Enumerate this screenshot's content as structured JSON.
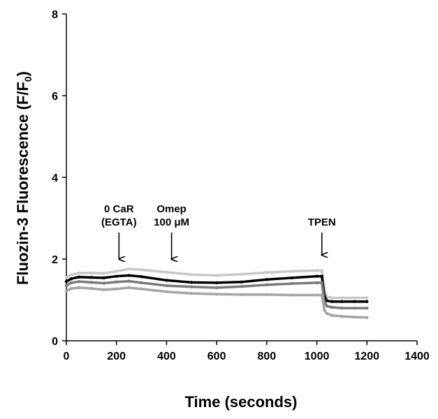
{
  "chart_data": {
    "type": "line",
    "title": "",
    "xlabel": "Time (seconds)",
    "ylabel": "Fluozin-3 Fluorescence (F/F",
    "ylabel_sub": "0",
    "ylabel_end": ")",
    "xlim": [
      0,
      1400
    ],
    "ylim": [
      0,
      8
    ],
    "xticks": [
      0,
      200,
      400,
      600,
      800,
      1000,
      1200,
      1400
    ],
    "yticks": [
      0,
      2,
      4,
      6,
      8
    ],
    "grid": false,
    "legend": "none",
    "series": [
      {
        "color": "#c8c8c8",
        "x": [
          0,
          20,
          50,
          100,
          150,
          200,
          250,
          300,
          400,
          500,
          600,
          700,
          800,
          900,
          1000,
          1020,
          1030,
          1040,
          1060,
          1100,
          1150,
          1200
        ],
        "y": [
          1.55,
          1.62,
          1.66,
          1.66,
          1.65,
          1.7,
          1.76,
          1.74,
          1.68,
          1.62,
          1.6,
          1.63,
          1.67,
          1.7,
          1.72,
          1.72,
          1.25,
          1.08,
          1.05,
          1.05,
          1.05,
          1.05
        ]
      },
      {
        "color": "#000000",
        "x": [
          0,
          20,
          50,
          100,
          150,
          200,
          250,
          300,
          400,
          500,
          600,
          700,
          800,
          900,
          1000,
          1020,
          1030,
          1040,
          1060,
          1100,
          1150,
          1200
        ],
        "y": [
          1.45,
          1.52,
          1.56,
          1.55,
          1.54,
          1.58,
          1.6,
          1.57,
          1.48,
          1.43,
          1.42,
          1.44,
          1.5,
          1.54,
          1.58,
          1.58,
          1.1,
          0.98,
          0.96,
          0.96,
          0.96,
          0.96
        ]
      },
      {
        "color": "#7a7a7a",
        "x": [
          0,
          20,
          50,
          100,
          150,
          200,
          250,
          300,
          400,
          500,
          600,
          700,
          800,
          900,
          1000,
          1020,
          1030,
          1040,
          1060,
          1100,
          1150,
          1200
        ],
        "y": [
          1.35,
          1.42,
          1.45,
          1.43,
          1.41,
          1.44,
          1.46,
          1.42,
          1.35,
          1.32,
          1.3,
          1.33,
          1.37,
          1.4,
          1.42,
          1.42,
          0.95,
          0.85,
          0.82,
          0.8,
          0.8,
          0.8
        ]
      },
      {
        "color": "#a5a5a5",
        "x": [
          0,
          20,
          50,
          100,
          150,
          200,
          250,
          300,
          400,
          500,
          600,
          700,
          800,
          900,
          1000,
          1020,
          1030,
          1040,
          1060,
          1100,
          1150,
          1200
        ],
        "y": [
          1.22,
          1.28,
          1.3,
          1.28,
          1.25,
          1.27,
          1.3,
          1.27,
          1.2,
          1.16,
          1.14,
          1.13,
          1.13,
          1.12,
          1.12,
          1.12,
          0.75,
          0.67,
          0.62,
          0.6,
          0.58,
          0.57
        ]
      }
    ],
    "annotations": [
      {
        "lines": [
          "0 CaR",
          "(EGTA)"
        ],
        "x": 210,
        "arrow_top": 2.65,
        "arrow_bottom": 2.0
      },
      {
        "lines": [
          "Omep",
          "100 μM"
        ],
        "x": 420,
        "arrow_top": 2.65,
        "arrow_bottom": 2.0
      },
      {
        "lines": [
          "TPEN"
        ],
        "x": 1020,
        "arrow_top": 2.65,
        "arrow_bottom": 2.1
      }
    ]
  }
}
